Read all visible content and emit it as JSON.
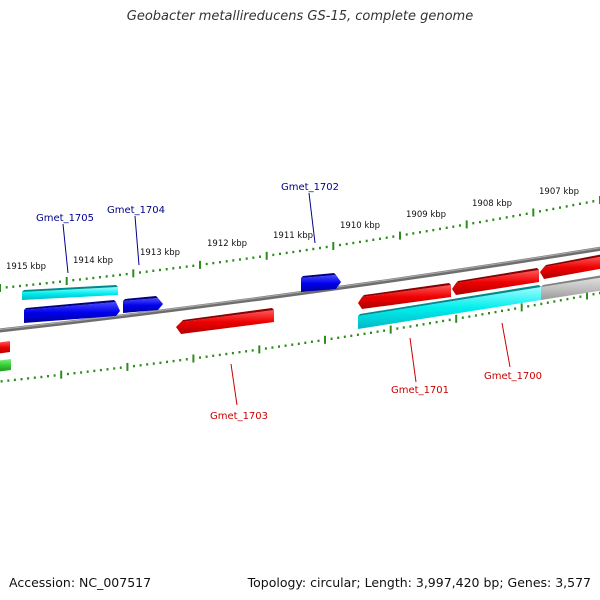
{
  "title": "Geobacter metallireducens GS-15, complete genome",
  "footer": {
    "accession": "Accession: NC_007517",
    "summary": "Topology: circular; Length: 3,997,420 bp; Genes: 3,577"
  },
  "ticks": [
    "1915 kbp",
    "1914 kbp",
    "1913 kbp",
    "1912 kbp",
    "1911 kbp",
    "1910 kbp",
    "1909 kbp",
    "1908 kbp",
    "1907 kbp"
  ],
  "genes": [
    {
      "label": "Gmet_1705",
      "color": "#00008b"
    },
    {
      "label": "Gmet_1704",
      "color": "#00008b"
    },
    {
      "label": "Gmet_1702",
      "color": "#00008b"
    },
    {
      "label": "Gmet_1703",
      "color": "#cc0000"
    },
    {
      "label": "Gmet_1701",
      "color": "#cc0000"
    },
    {
      "label": "Gmet_1700",
      "color": "#cc0000"
    }
  ],
  "colors": {
    "backbone": "#808080",
    "tick": "#2e8b1e",
    "forward": "#0000ee",
    "reverse": "#ee0000",
    "rna": "#00e5ee",
    "other": "#b0b0b0",
    "green": "#33cc33",
    "label_blue": "#00008b",
    "label_red": "#cc0000"
  }
}
